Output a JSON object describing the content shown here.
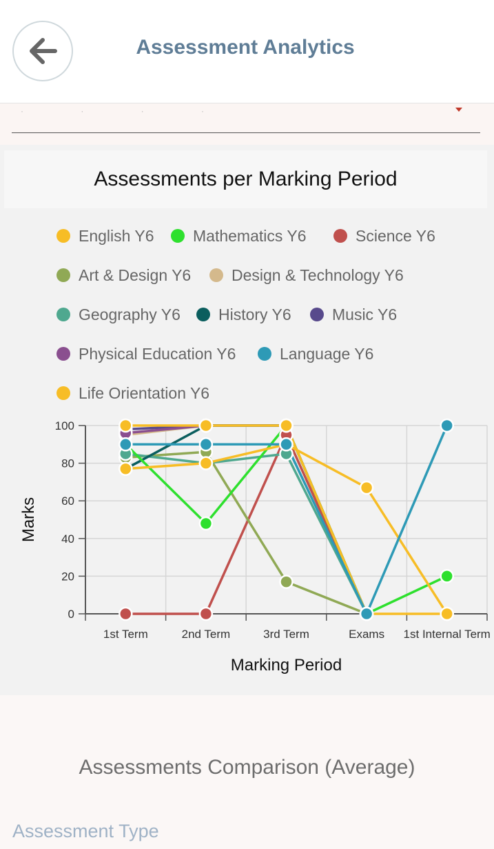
{
  "appbar": {
    "title": "Assessment Analytics"
  },
  "icons": {
    "back": "arrow-left-icon",
    "dropdown": "caret-down-icon"
  },
  "select": {
    "value": "· · · ·"
  },
  "chart_panel": {
    "title": "Assessments per Marking Period"
  },
  "legend": [
    {
      "label": "English Y6",
      "color": "#f7bd26"
    },
    {
      "label": "Mathematics  Y6",
      "color": "#2ee02e"
    },
    {
      "label": "Science Y6",
      "color": "#c0504d"
    },
    {
      "label": "Art & Design Y6",
      "color": "#90a955"
    },
    {
      "label": "Design & Technology Y6",
      "color": "#d4b98c"
    },
    {
      "label": "Geography Y6",
      "color": "#4fa88f"
    },
    {
      "label": "History Y6",
      "color": "#0b5e5e"
    },
    {
      "label": "Music Y6",
      "color": "#584a8c"
    },
    {
      "label": "Physical Education Y6",
      "color": "#8a4f8f"
    },
    {
      "label": "Language Y6",
      "color": "#2e9ab6"
    },
    {
      "label": "Life Orientation Y6",
      "color": "#f7bd26"
    }
  ],
  "chart_data": {
    "type": "line",
    "xlabel": "Marking Period",
    "ylabel": "Marks",
    "categories": [
      "1st Term",
      "2nd Term",
      "3rd Term",
      "Exams",
      "1st Internal Term"
    ],
    "ylim": [
      0,
      100
    ],
    "yticks": [
      0,
      20,
      40,
      60,
      80,
      100
    ],
    "grid": true,
    "series": [
      {
        "name": "Science Y6",
        "color": "#c0504d",
        "values": [
          0,
          0,
          95,
          0,
          null
        ]
      },
      {
        "name": "Art & Design Y6",
        "color": "#90a955",
        "values": [
          83,
          86,
          17,
          0,
          null
        ]
      },
      {
        "name": "Design & Technology Y6",
        "color": "#d4b98c",
        "values": [
          95,
          100,
          100,
          0,
          null
        ]
      },
      {
        "name": "Music Y6",
        "color": "#584a8c",
        "values": [
          98,
          100,
          100,
          0,
          null
        ]
      },
      {
        "name": "Physical Education Y6",
        "color": "#8a4f8f",
        "values": [
          96,
          100,
          100,
          0,
          null
        ]
      },
      {
        "name": "Geography Y6",
        "color": "#4fa88f",
        "values": [
          85,
          80,
          85,
          0,
          null
        ]
      },
      {
        "name": "History Y6",
        "color": "#0b5e5e",
        "values": [
          77,
          100,
          100,
          0,
          null
        ]
      },
      {
        "name": "Mathematics  Y6",
        "color": "#2ee02e",
        "values": [
          90,
          48,
          100,
          0,
          20
        ]
      },
      {
        "name": "English Y6",
        "color": "#f7bd26",
        "values": [
          77,
          80,
          90,
          67,
          0
        ]
      },
      {
        "name": "Life Orientation Y6",
        "color": "#f7bd26",
        "values": [
          100,
          100,
          100,
          0,
          0
        ]
      },
      {
        "name": "Language Y6",
        "color": "#2e9ab6",
        "values": [
          90,
          90,
          90,
          0,
          100
        ]
      }
    ]
  },
  "comparison": {
    "title": "Assessments Comparison (Average)"
  },
  "filters": {
    "assessment_type_label": "Assessment Type"
  }
}
